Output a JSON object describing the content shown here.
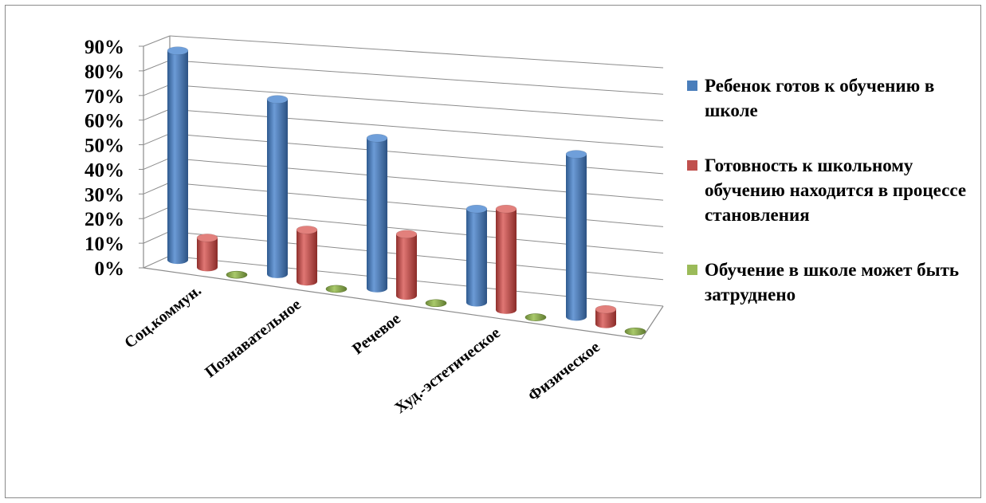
{
  "chart_data": {
    "type": "bar",
    "categories": [
      "Соц.коммун.",
      "Познавательное",
      "Речевое",
      "Худ.-эстетическое",
      "Физическое"
    ],
    "series": [
      {
        "name": "Ребенок готов к обучению в школе",
        "color": "#4a7ebb",
        "values": [
          85,
          71,
          61,
          38,
          66
        ]
      },
      {
        "name": "Готовность к школьному обучению находится в процессе становления",
        "color": "#c0504d",
        "values": [
          12,
          21,
          25,
          41,
          6
        ]
      },
      {
        "name": "Обучение в школе может быть затруднено",
        "color": "#9bbb59",
        "values": [
          0,
          0,
          0,
          0,
          0
        ]
      }
    ],
    "yticks": [
      "0%",
      "10%",
      "20%",
      "30%",
      "40%",
      "50%",
      "60%",
      "70%",
      "80%",
      "90%"
    ],
    "ylim": [
      0,
      90
    ],
    "legend_position": "right",
    "grid": true
  }
}
